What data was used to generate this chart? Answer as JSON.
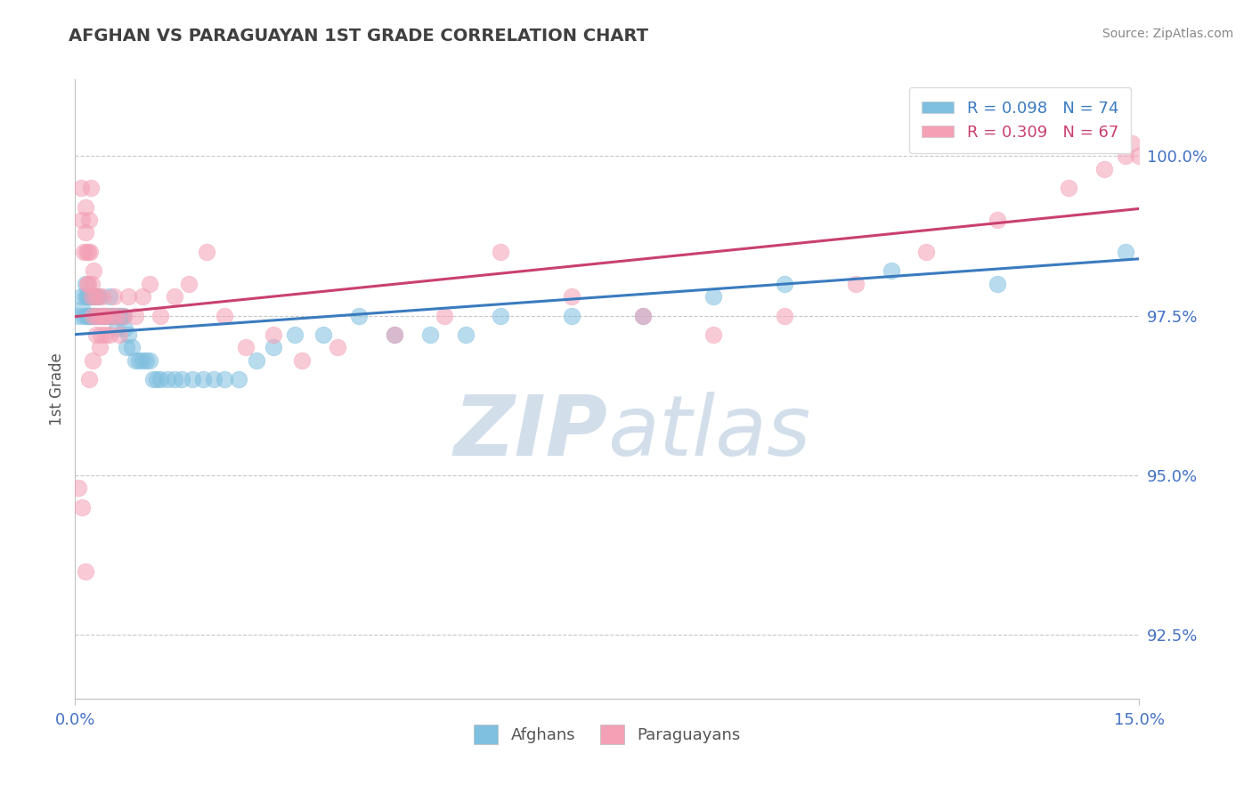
{
  "title": "AFGHAN VS PARAGUAYAN 1ST GRADE CORRELATION CHART",
  "source_text": "Source: ZipAtlas.com",
  "ylabel": "1st Grade",
  "xlim": [
    0.0,
    15.0
  ],
  "ylim": [
    91.5,
    101.2
  ],
  "yticks": [
    92.5,
    95.0,
    97.5,
    100.0
  ],
  "ytick_labels": [
    "92.5%",
    "95.0%",
    "97.5%",
    "100.0%"
  ],
  "afghan_R": 0.098,
  "afghan_N": 74,
  "paraguayan_R": 0.309,
  "paraguayan_N": 67,
  "afghan_color": "#7fbfdf",
  "paraguayan_color": "#f4a0b5",
  "afghan_line_color": "#3a7bbf",
  "paraguayan_line_color": "#c94070",
  "watermark_color": "#ccd9e8",
  "background_color": "#ffffff",
  "title_color": "#404040",
  "axis_label_color": "#555555",
  "tick_color": "#4472c4",
  "grid_color": "#c8c8c8",
  "source_color": "#888888",
  "afghan_x": [
    0.05,
    0.08,
    0.1,
    0.12,
    0.14,
    0.15,
    0.16,
    0.17,
    0.18,
    0.19,
    0.2,
    0.21,
    0.22,
    0.23,
    0.24,
    0.25,
    0.26,
    0.27,
    0.28,
    0.29,
    0.3,
    0.32,
    0.34,
    0.36,
    0.38,
    0.4,
    0.42,
    0.45,
    0.48,
    0.5,
    0.52,
    0.55,
    0.58,
    0.6,
    0.62,
    0.65,
    0.68,
    0.7,
    0.72,
    0.75,
    0.8,
    0.85,
    0.9,
    0.95,
    1.0,
    1.05,
    1.1,
    1.15,
    1.2,
    1.3,
    1.4,
    1.5,
    1.65,
    1.8,
    1.95,
    2.1,
    2.3,
    2.55,
    2.8,
    3.1,
    3.5,
    4.0,
    4.5,
    5.0,
    5.5,
    6.0,
    7.0,
    8.0,
    9.0,
    10.0,
    11.5,
    13.0,
    14.2,
    14.8
  ],
  "afghan_y": [
    97.5,
    97.8,
    97.6,
    97.5,
    97.8,
    98.0,
    97.5,
    97.8,
    97.5,
    97.8,
    97.5,
    97.8,
    97.5,
    97.8,
    97.8,
    97.5,
    97.5,
    97.5,
    97.8,
    97.5,
    97.8,
    97.5,
    97.8,
    97.5,
    97.5,
    97.5,
    97.5,
    97.5,
    97.8,
    97.5,
    97.5,
    97.5,
    97.3,
    97.5,
    97.5,
    97.5,
    97.5,
    97.3,
    97.0,
    97.2,
    97.0,
    96.8,
    96.8,
    96.8,
    96.8,
    96.8,
    96.5,
    96.5,
    96.5,
    96.5,
    96.5,
    96.5,
    96.5,
    96.5,
    96.5,
    96.5,
    96.5,
    96.8,
    97.0,
    97.2,
    97.2,
    97.5,
    97.2,
    97.2,
    97.2,
    97.5,
    97.5,
    97.5,
    97.8,
    98.0,
    98.2,
    98.0,
    100.5,
    98.5
  ],
  "paraguayan_x": [
    0.05,
    0.08,
    0.1,
    0.12,
    0.14,
    0.15,
    0.16,
    0.17,
    0.18,
    0.19,
    0.2,
    0.21,
    0.22,
    0.23,
    0.24,
    0.25,
    0.26,
    0.28,
    0.3,
    0.32,
    0.34,
    0.36,
    0.38,
    0.4,
    0.42,
    0.45,
    0.48,
    0.52,
    0.55,
    0.58,
    0.62,
    0.68,
    0.75,
    0.85,
    0.95,
    1.05,
    1.2,
    1.4,
    1.6,
    1.85,
    2.1,
    2.4,
    2.8,
    3.2,
    3.7,
    4.5,
    5.2,
    6.0,
    7.0,
    8.0,
    9.0,
    10.0,
    11.0,
    12.0,
    13.0,
    14.0,
    14.5,
    14.8,
    14.9,
    15.0,
    0.1,
    0.15,
    0.2,
    0.25,
    0.3,
    0.35,
    0.4
  ],
  "paraguayan_y": [
    94.8,
    99.5,
    99.0,
    98.5,
    99.2,
    98.8,
    98.5,
    98.0,
    98.5,
    98.0,
    99.0,
    98.5,
    99.5,
    98.0,
    97.8,
    97.5,
    98.2,
    97.8,
    97.5,
    97.8,
    97.5,
    97.2,
    97.8,
    97.5,
    97.2,
    97.5,
    97.2,
    97.5,
    97.8,
    97.5,
    97.2,
    97.5,
    97.8,
    97.5,
    97.8,
    98.0,
    97.5,
    97.8,
    98.0,
    98.5,
    97.5,
    97.0,
    97.2,
    96.8,
    97.0,
    97.2,
    97.5,
    98.5,
    97.8,
    97.5,
    97.2,
    97.5,
    98.0,
    98.5,
    99.0,
    99.5,
    99.8,
    100.0,
    100.2,
    100.0,
    94.5,
    93.5,
    96.5,
    96.8,
    97.2,
    97.0,
    97.5
  ]
}
